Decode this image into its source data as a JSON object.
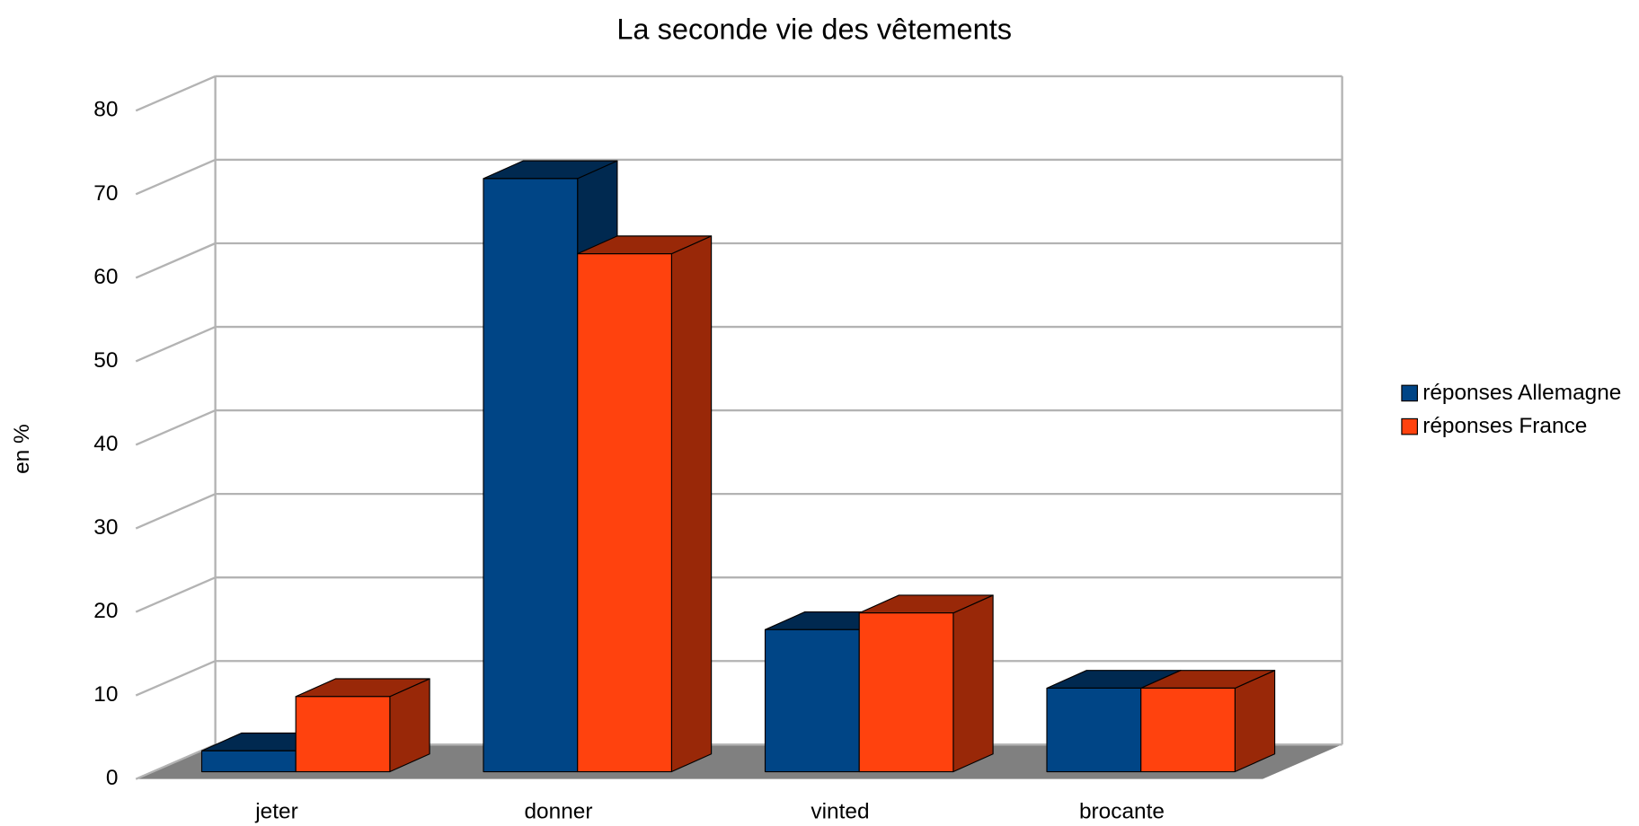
{
  "chart_data": {
    "type": "bar3d",
    "title": "La seconde vie des vêtements",
    "y_label": "en %",
    "categories": [
      "jeter",
      "donner",
      "vinted",
      "brocante"
    ],
    "series": [
      {
        "name": "réponses Allemagne",
        "color": "#004586",
        "values": [
          2.5,
          71,
          17,
          10
        ]
      },
      {
        "name": "réponses France",
        "color": "#ff420e",
        "values": [
          9,
          62,
          19,
          10
        ]
      }
    ],
    "ylim": [
      0,
      80
    ],
    "yticks": [
      0,
      10,
      20,
      30,
      40,
      50,
      60,
      70,
      80
    ],
    "grid": true,
    "legend": "right"
  }
}
